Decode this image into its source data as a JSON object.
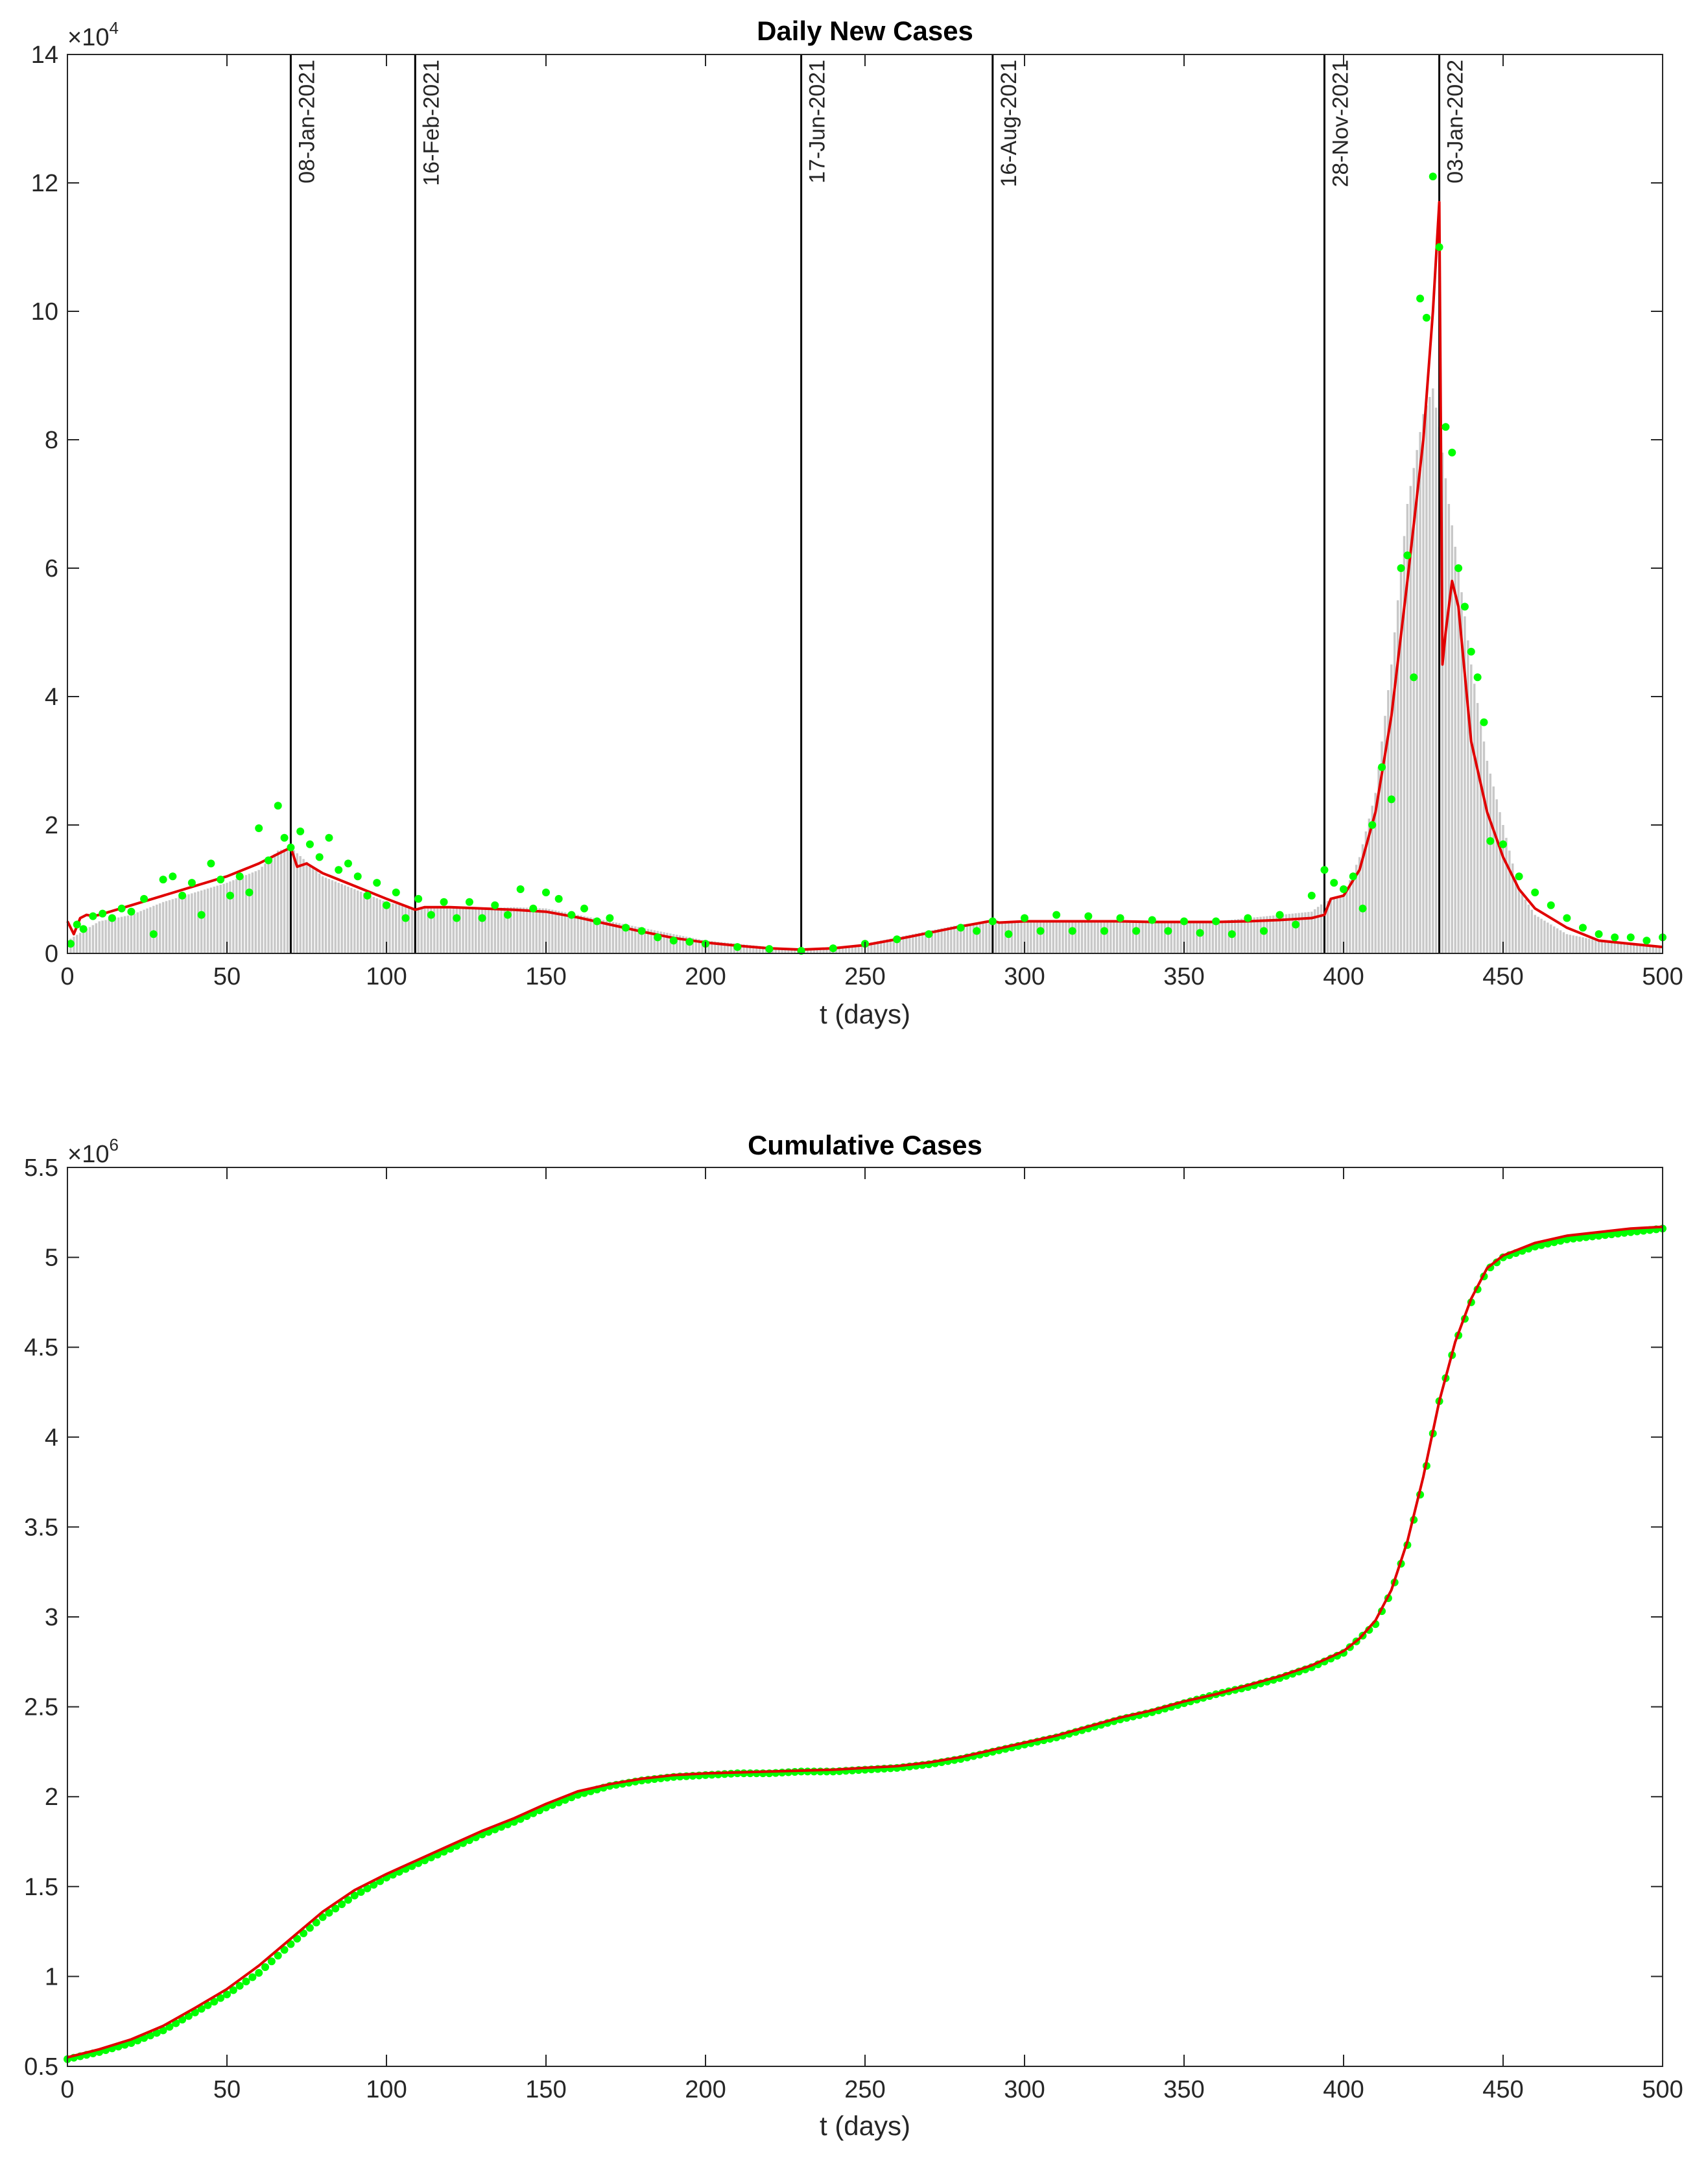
{
  "colors": {
    "bars": "#c8c8c8",
    "points": "#00ff00",
    "fit": "#e00000",
    "event_lines": "#000000",
    "axes": "#262626"
  },
  "chart_data": [
    {
      "type": "bar",
      "title": "Daily New Cases",
      "xlabel": "t (days)",
      "ylabel": "",
      "xlim": [
        0,
        500
      ],
      "ylim": [
        0,
        140000
      ],
      "xticks": [
        0,
        50,
        100,
        150,
        200,
        250,
        300,
        350,
        400,
        450,
        500
      ],
      "yticks": [
        0,
        20000,
        40000,
        60000,
        80000,
        100000,
        120000,
        140000
      ],
      "ytick_labels": [
        "0",
        "2",
        "4",
        "6",
        "8",
        "10",
        "12",
        "14"
      ],
      "y_exponent_base": "×10",
      "y_exponent": "4",
      "grid": false,
      "events": [
        {
          "t": 70,
          "label": "08-Jan-2021"
        },
        {
          "t": 109,
          "label": "16-Feb-2021"
        },
        {
          "t": 230,
          "label": "17-Jun-2021"
        },
        {
          "t": 290,
          "label": "16-Aug-2021"
        },
        {
          "t": 394,
          "label": "28-Nov-2021"
        },
        {
          "t": 430,
          "label": "03-Jan-2022"
        }
      ],
      "series": [
        {
          "kind": "bar",
          "description_from": "daily reported cases (grey bars), approximated at key days",
          "x": [
            0,
            10,
            20,
            30,
            40,
            50,
            60,
            66,
            70,
            80,
            90,
            100,
            109,
            120,
            130,
            140,
            150,
            160,
            170,
            180,
            190,
            200,
            210,
            220,
            230,
            240,
            250,
            260,
            270,
            280,
            290,
            300,
            310,
            320,
            330,
            340,
            350,
            360,
            370,
            380,
            390,
            394,
            400,
            405,
            410,
            415,
            420,
            425,
            428,
            430,
            433,
            436,
            440,
            445,
            450,
            455,
            460,
            470,
            480,
            490,
            500
          ],
          "y": [
            2000,
            5000,
            6000,
            8000,
            9500,
            11000,
            13000,
            16000,
            16500,
            12000,
            10000,
            8000,
            7000,
            7000,
            7000,
            7200,
            7000,
            6000,
            5000,
            4000,
            3000,
            2000,
            1500,
            1000,
            600,
            800,
            1500,
            2500,
            3500,
            4500,
            5000,
            5000,
            5000,
            5000,
            5000,
            5000,
            5000,
            5000,
            5500,
            6000,
            6500,
            8000,
            9000,
            15000,
            25000,
            45000,
            70000,
            84000,
            88000,
            82000,
            70000,
            60000,
            45000,
            30000,
            20000,
            10000,
            6000,
            3000,
            2000,
            1500,
            1000
          ]
        },
        {
          "kind": "line",
          "description_from": "model fit (red line)",
          "x": [
            0,
            2,
            4,
            6,
            8,
            10,
            20,
            30,
            40,
            50,
            60,
            70,
            72,
            75,
            80,
            90,
            100,
            108,
            109,
            112,
            120,
            130,
            140,
            150,
            160,
            170,
            180,
            190,
            200,
            210,
            220,
            230,
            240,
            250,
            260,
            270,
            280,
            290,
            292,
            300,
            310,
            320,
            330,
            340,
            350,
            360,
            370,
            380,
            390,
            394,
            396,
            400,
            405,
            410,
            415,
            420,
            425,
            428,
            430,
            431,
            432,
            434,
            436,
            440,
            445,
            450,
            455,
            460,
            470,
            480,
            490,
            500
          ],
          "y": [
            5000,
            3000,
            5500,
            6000,
            5800,
            6000,
            7500,
            9000,
            10500,
            12000,
            14000,
            16500,
            13500,
            14000,
            12500,
            10500,
            8500,
            7000,
            6800,
            7200,
            7200,
            7000,
            6800,
            6500,
            5600,
            4500,
            3400,
            2400,
            1700,
            1200,
            800,
            600,
            800,
            1300,
            2200,
            3200,
            4200,
            5100,
            4800,
            5000,
            5000,
            5000,
            5000,
            4900,
            4900,
            4900,
            5000,
            5200,
            5500,
            6000,
            8500,
            9000,
            13000,
            22000,
            37000,
            58000,
            80000,
            100000,
            117000,
            45000,
            50000,
            58000,
            54000,
            33000,
            22000,
            15000,
            10000,
            7000,
            4000,
            2000,
            1500,
            1000
          ]
        },
        {
          "kind": "scatter",
          "description_from": "smoothed/derived daily points (green dots), approximated",
          "x": [
            1,
            3,
            5,
            8,
            11,
            14,
            17,
            20,
            24,
            27,
            30,
            33,
            36,
            39,
            42,
            45,
            48,
            51,
            54,
            57,
            60,
            63,
            66,
            68,
            70,
            73,
            76,
            79,
            82,
            85,
            88,
            91,
            94,
            97,
            100,
            103,
            106,
            110,
            114,
            118,
            122,
            126,
            130,
            134,
            138,
            142,
            146,
            150,
            154,
            158,
            162,
            166,
            170,
            175,
            180,
            185,
            190,
            195,
            200,
            210,
            220,
            230,
            240,
            250,
            260,
            270,
            280,
            285,
            290,
            295,
            300,
            305,
            310,
            315,
            320,
            325,
            330,
            335,
            340,
            345,
            350,
            355,
            360,
            365,
            370,
            375,
            380,
            385,
            390,
            394,
            397,
            400,
            403,
            406,
            409,
            412,
            415,
            418,
            420,
            422,
            424,
            426,
            428,
            430,
            432,
            434,
            436,
            438,
            440,
            442,
            444,
            446,
            450,
            455,
            460,
            465,
            470,
            475,
            480,
            485,
            490,
            495,
            500
          ],
          "y": [
            1500,
            4500,
            3800,
            5800,
            6200,
            5500,
            7000,
            6500,
            8500,
            3000,
            11500,
            12000,
            9000,
            11000,
            6000,
            14000,
            11500,
            9000,
            12000,
            9500,
            19500,
            14500,
            23000,
            18000,
            16500,
            19000,
            17000,
            15000,
            18000,
            13000,
            14000,
            12000,
            9000,
            11000,
            7500,
            9500,
            5500,
            8500,
            6000,
            8000,
            5500,
            8000,
            5500,
            7500,
            6000,
            10000,
            7000,
            9500,
            8500,
            6000,
            7000,
            5000,
            5500,
            4000,
            3500,
            2500,
            2000,
            1800,
            1500,
            1000,
            700,
            400,
            800,
            1500,
            2200,
            3000,
            4000,
            3500,
            5000,
            3000,
            5500,
            3500,
            6000,
            3500,
            5800,
            3500,
            5500,
            3500,
            5200,
            3500,
            5000,
            3200,
            5000,
            3000,
            5500,
            3500,
            6000,
            4500,
            9000,
            13000,
            11000,
            10000,
            12000,
            7000,
            20000,
            29000,
            24000,
            60000,
            62000,
            43000,
            102000,
            99000,
            121000,
            110000,
            82000,
            78000,
            60000,
            54000,
            47000,
            43000,
            36000,
            17500,
            17000,
            12000,
            9500,
            7500,
            5500,
            4000,
            3000,
            2500,
            2500,
            2000,
            2500
          ]
        }
      ]
    },
    {
      "type": "line",
      "title": "Cumulative Cases",
      "xlabel": "t (days)",
      "ylabel": "",
      "xlim": [
        0,
        500
      ],
      "ylim": [
        500000,
        5500000
      ],
      "xticks": [
        0,
        50,
        100,
        150,
        200,
        250,
        300,
        350,
        400,
        450,
        500
      ],
      "yticks": [
        500000,
        1000000,
        1500000,
        2000000,
        2500000,
        3000000,
        3500000,
        4000000,
        4500000,
        5000000,
        5500000
      ],
      "ytick_labels": [
        "0.5",
        "1",
        "1.5",
        "2",
        "2.5",
        "3",
        "3.5",
        "4",
        "4.5",
        "5",
        "5.5"
      ],
      "y_exponent_base": "×10",
      "y_exponent": "6",
      "grid": false,
      "series": [
        {
          "kind": "scatter",
          "description_from": "reported cumulative cases (green dots)",
          "x": [
            0,
            10,
            20,
            30,
            40,
            50,
            60,
            70,
            80,
            90,
            100,
            110,
            120,
            130,
            140,
            150,
            160,
            170,
            180,
            190,
            200,
            210,
            220,
            230,
            240,
            250,
            260,
            270,
            280,
            290,
            300,
            310,
            320,
            330,
            340,
            350,
            360,
            370,
            380,
            390,
            400,
            405,
            410,
            415,
            420,
            425,
            430,
            435,
            440,
            445,
            450,
            460,
            470,
            480,
            490,
            500
          ],
          "y": [
            540000,
            580000,
            630000,
            700000,
            800000,
            900000,
            1020000,
            1180000,
            1330000,
            1450000,
            1550000,
            1630000,
            1710000,
            1790000,
            1860000,
            1940000,
            2010000,
            2060000,
            2090000,
            2110000,
            2120000,
            2130000,
            2130000,
            2140000,
            2140000,
            2150000,
            2160000,
            2180000,
            2210000,
            2250000,
            2290000,
            2330000,
            2380000,
            2430000,
            2470000,
            2520000,
            2570000,
            2610000,
            2660000,
            2720000,
            2800000,
            2880000,
            2960000,
            3140000,
            3400000,
            3750000,
            4200000,
            4520000,
            4750000,
            4930000,
            5000000,
            5060000,
            5100000,
            5120000,
            5140000,
            5160000
          ]
        },
        {
          "kind": "line",
          "description_from": "model fit (red line)",
          "x": [
            0,
            10,
            20,
            30,
            40,
            50,
            60,
            70,
            80,
            90,
            100,
            110,
            120,
            130,
            140,
            150,
            160,
            170,
            180,
            190,
            200,
            210,
            220,
            230,
            240,
            250,
            260,
            270,
            280,
            290,
            300,
            310,
            320,
            330,
            340,
            350,
            360,
            370,
            380,
            390,
            400,
            405,
            410,
            415,
            420,
            425,
            430,
            435,
            440,
            445,
            450,
            460,
            470,
            480,
            490,
            500
          ],
          "y": [
            550000,
            595000,
            650000,
            725000,
            825000,
            930000,
            1060000,
            1210000,
            1360000,
            1480000,
            1570000,
            1650000,
            1730000,
            1810000,
            1880000,
            1960000,
            2030000,
            2070000,
            2100000,
            2120000,
            2130000,
            2135000,
            2140000,
            2145000,
            2150000,
            2160000,
            2170000,
            2190000,
            2220000,
            2260000,
            2300000,
            2340000,
            2390000,
            2440000,
            2480000,
            2530000,
            2570000,
            2620000,
            2670000,
            2730000,
            2810000,
            2880000,
            2980000,
            3150000,
            3420000,
            3780000,
            4200000,
            4530000,
            4770000,
            4940000,
            5010000,
            5080000,
            5120000,
            5140000,
            5160000,
            5170000
          ]
        }
      ]
    }
  ]
}
